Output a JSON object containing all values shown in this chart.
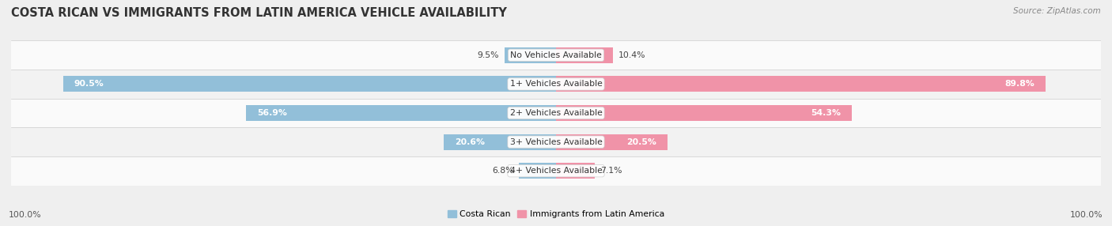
{
  "title": "COSTA RICAN VS IMMIGRANTS FROM LATIN AMERICA VEHICLE AVAILABILITY",
  "source": "Source: ZipAtlas.com",
  "categories": [
    "No Vehicles Available",
    "1+ Vehicles Available",
    "2+ Vehicles Available",
    "3+ Vehicles Available",
    "4+ Vehicles Available"
  ],
  "costa_rican": [
    9.5,
    90.5,
    56.9,
    20.6,
    6.8
  ],
  "immigrants": [
    10.4,
    89.8,
    54.3,
    20.5,
    7.1
  ],
  "blue_color": "#92BFD9",
  "pink_color": "#F093A8",
  "bg_color": "#EFEFEF",
  "row_colors": [
    "#FAFAFA",
    "#F2F2F2"
  ],
  "max_value": 100.0,
  "legend_label_left": "Costa Rican",
  "legend_label_right": "Immigrants from Latin America",
  "axis_label_left": "100.0%",
  "axis_label_right": "100.0%",
  "title_fontsize": 10.5,
  "source_fontsize": 7.5,
  "label_fontsize": 7.8,
  "bar_height": 0.55
}
